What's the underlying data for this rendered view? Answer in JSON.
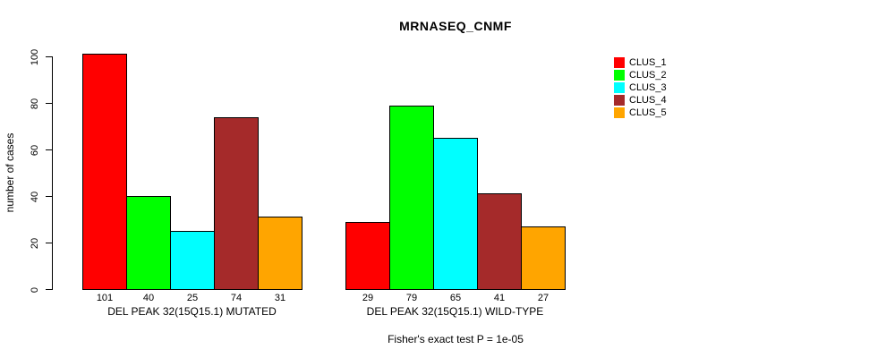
{
  "title": "MRNASEQ_CNMF",
  "footer": "Fisher's exact test P = 1e-05",
  "chart_data": {
    "type": "bar",
    "title": "MRNASEQ_CNMF",
    "xlabel": "",
    "ylabel": "number of cases",
    "ylim": [
      0,
      100
    ],
    "yticks": [
      0,
      20,
      40,
      60,
      80,
      100
    ],
    "grid": false,
    "legend_position": "right",
    "bar_value_labels_shown": true,
    "series": [
      {
        "name": "CLUS_1",
        "color": "#ff0000"
      },
      {
        "name": "CLUS_2",
        "color": "#00ff00"
      },
      {
        "name": "CLUS_3",
        "color": "#00ffff"
      },
      {
        "name": "CLUS_4",
        "color": "#a52a2a"
      },
      {
        "name": "CLUS_5",
        "color": "#ffa500"
      }
    ],
    "groups": [
      {
        "label": "DEL PEAK 32(15Q15.1) MUTATED",
        "values": [
          101,
          40,
          25,
          74,
          31
        ]
      },
      {
        "label": "DEL PEAK 32(15Q15.1) WILD-TYPE",
        "values": [
          29,
          79,
          65,
          41,
          27
        ]
      }
    ],
    "annotation": "Fisher's exact test P = 1e-05"
  }
}
